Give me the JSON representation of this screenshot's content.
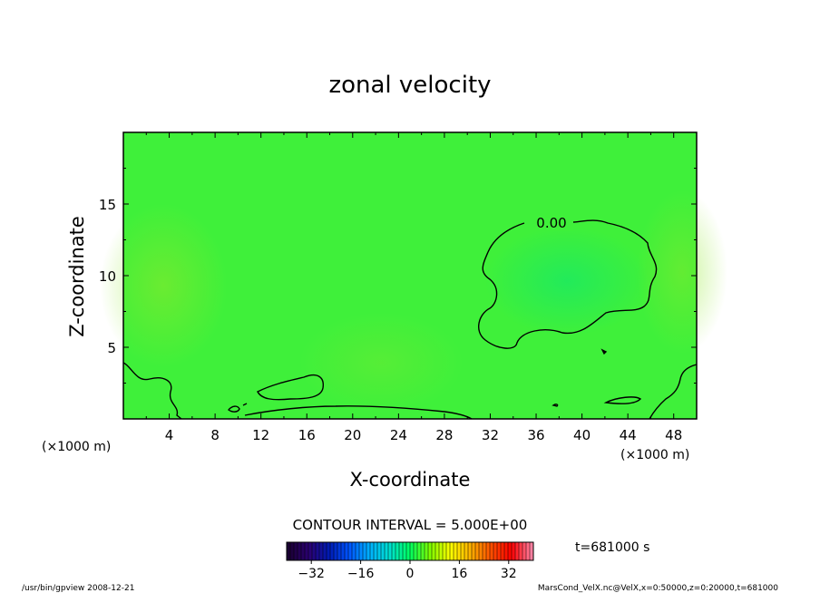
{
  "chart_data": {
    "type": "contour",
    "title": "zonal velocity",
    "xlabel": "X-coordinate",
    "ylabel": "Z-coordinate",
    "x_unit_left": "(×1000 m)",
    "x_unit_right": "(×1000 m)",
    "x_ticks": [
      4,
      8,
      12,
      16,
      20,
      24,
      28,
      32,
      36,
      40,
      44,
      48
    ],
    "y_ticks": [
      5,
      10,
      15
    ],
    "xlim": [
      0,
      50
    ],
    "ylim": [
      0,
      20
    ],
    "contour_label": "0.00",
    "contour_interval_text": "CONTOUR INTERVAL = 5.000E+00",
    "time_text": "t=681000 s",
    "colorbar": {
      "ticks": [
        -32,
        -16,
        0,
        16,
        32
      ],
      "range": [
        -40,
        40
      ],
      "colors": [
        "#1a0033",
        "#2b0070",
        "#001ab3",
        "#0055ff",
        "#00b0ff",
        "#00e0d0",
        "#00ff60",
        "#80ff00",
        "#ffff00",
        "#ffb000",
        "#ff5000",
        "#ff0000",
        "#ff80a0"
      ]
    },
    "field_base_color": "#3ff03a"
  },
  "footer": {
    "left": "/usr/bin/gpview   2008-12-21",
    "right": "MarsCond_VelX.nc@VelX,x=0:50000,z=0:20000,t=681000"
  }
}
